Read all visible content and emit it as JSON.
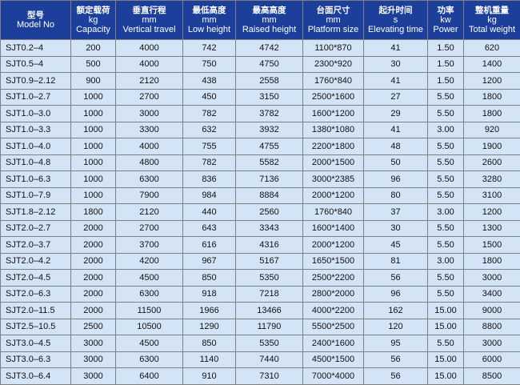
{
  "headers": [
    {
      "zh": "型号",
      "unit": "",
      "en": "Model No"
    },
    {
      "zh": "额定载荷",
      "unit": "kg",
      "en": "Capacity"
    },
    {
      "zh": "垂直行程",
      "unit": "mm",
      "en": "Vertical travel"
    },
    {
      "zh": "最低高度",
      "unit": "mm",
      "en": "Low height"
    },
    {
      "zh": "最高高度",
      "unit": "mm",
      "en": "Raised height"
    },
    {
      "zh": "台面尺寸",
      "unit": "mm",
      "en": "Platform size"
    },
    {
      "zh": "起升时间",
      "unit": "s",
      "en": "Elevating time"
    },
    {
      "zh": "功率",
      "unit": "kw",
      "en": "Power"
    },
    {
      "zh": "整机重量",
      "unit": "kg",
      "en": "Total weight"
    }
  ],
  "rows": [
    [
      "SJT0.2–4",
      "200",
      "4000",
      "742",
      "4742",
      "1100*870",
      "41",
      "1.50",
      "620"
    ],
    [
      "SJT0.5–4",
      "500",
      "4000",
      "750",
      "4750",
      "2300*920",
      "30",
      "1.50",
      "1400"
    ],
    [
      "SJT0.9–2.12",
      "900",
      "2120",
      "438",
      "2558",
      "1760*840",
      "41",
      "1.50",
      "1200"
    ],
    [
      "SJT1.0–2.7",
      "1000",
      "2700",
      "450",
      "3150",
      "2500*1600",
      "27",
      "5.50",
      "1800"
    ],
    [
      "SJT1.0–3.0",
      "1000",
      "3000",
      "782",
      "3782",
      "1600*1200",
      "29",
      "5.50",
      "1800"
    ],
    [
      "SJT1.0–3.3",
      "1000",
      "3300",
      "632",
      "3932",
      "1380*1080",
      "41",
      "3.00",
      "920"
    ],
    [
      "SJT1.0–4.0",
      "1000",
      "4000",
      "755",
      "4755",
      "2200*1800",
      "48",
      "5.50",
      "1900"
    ],
    [
      "SJT1.0–4.8",
      "1000",
      "4800",
      "782",
      "5582",
      "2000*1500",
      "50",
      "5.50",
      "2600"
    ],
    [
      "SJT1.0–6.3",
      "1000",
      "6300",
      "836",
      "7136",
      "3000*2385",
      "96",
      "5.50",
      "3280"
    ],
    [
      "SJT1.0–7.9",
      "1000",
      "7900",
      "984",
      "8884",
      "2000*1200",
      "80",
      "5.50",
      "3100"
    ],
    [
      "SJT1.8–2.12",
      "1800",
      "2120",
      "440",
      "2560",
      "1760*840",
      "37",
      "3.00",
      "1200"
    ],
    [
      "SJT2.0–2.7",
      "2000",
      "2700",
      "643",
      "3343",
      "1600*1400",
      "30",
      "5.50",
      "1300"
    ],
    [
      "SJT2.0–3.7",
      "2000",
      "3700",
      "616",
      "4316",
      "2000*1200",
      "45",
      "5.50",
      "1500"
    ],
    [
      "SJT2.0–4.2",
      "2000",
      "4200",
      "967",
      "5167",
      "1650*1500",
      "81",
      "3.00",
      "1800"
    ],
    [
      "SJT2.0–4.5",
      "2000",
      "4500",
      "850",
      "5350",
      "2500*2200",
      "56",
      "5.50",
      "3000"
    ],
    [
      "SJT2.0–6.3",
      "2000",
      "6300",
      "918",
      "7218",
      "2800*2000",
      "96",
      "5.50",
      "3400"
    ],
    [
      "SJT2.0–11.5",
      "2000",
      "11500",
      "1966",
      "13466",
      "4000*2200",
      "162",
      "15.00",
      "9000"
    ],
    [
      "SJT2.5–10.5",
      "2500",
      "10500",
      "1290",
      "11790",
      "5500*2500",
      "120",
      "15.00",
      "8800"
    ],
    [
      "SJT3.0–4.5",
      "3000",
      "4500",
      "850",
      "5350",
      "2400*1600",
      "95",
      "5.50",
      "3000"
    ],
    [
      "SJT3.0–6.3",
      "3000",
      "6300",
      "1140",
      "7440",
      "4500*1500",
      "56",
      "15.00",
      "6000"
    ],
    [
      "SJT3.0–6.4",
      "3000",
      "6400",
      "910",
      "7310",
      "7000*4000",
      "56",
      "15.00",
      "8500"
    ]
  ]
}
